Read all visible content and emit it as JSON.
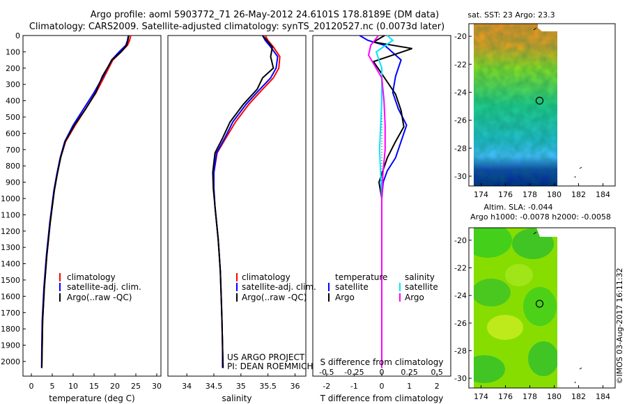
{
  "header": {
    "line1": "Argo profile: aoml 5903772_71 26-May-2012 24.6101S 178.8189E (DM data)",
    "line2": "Climatology: CARS2009. Satellite-adjusted climatology: synTS_20120527.nc (0.0073d later)"
  },
  "credit": {
    "project": "US ARGO PROJECT",
    "pi": "PI: DEAN ROEMMICH",
    "imos": "©IMOS 03-Aug-2017 16:11:32"
  },
  "colors": {
    "climatology": "#ff0000",
    "satellite": "#0000ff",
    "argo": "#000000",
    "salinity_satellite": "#00e5ff",
    "salinity_argo": "#ff00ff"
  },
  "chart_data": [
    {
      "type": "line",
      "id": "temperature",
      "xlabel": "temperature (deg C)",
      "ylabel": "depth",
      "xlim": [
        -2,
        31
      ],
      "ylim": [
        2090,
        0
      ],
      "xticks": [
        0,
        5,
        10,
        15,
        20,
        25,
        30
      ],
      "yticks": [
        0,
        100,
        200,
        300,
        400,
        500,
        600,
        700,
        800,
        900,
        1000,
        1100,
        1200,
        1300,
        1400,
        1500,
        1600,
        1700,
        1800,
        1900,
        2000
      ],
      "legend": [
        "climatology",
        "satellite-adj. clim.",
        "Argo(..raw -QC)"
      ],
      "series": [
        {
          "name": "climatology",
          "color": "#ff0000",
          "x": [
            23.8,
            23.5,
            23.0,
            21.5,
            19.5,
            17.5,
            15.5,
            13.0,
            10.5,
            8.2,
            7.0,
            6.2,
            5.5,
            5.0,
            4.5,
            4.1,
            3.7,
            3.4,
            3.1,
            2.9,
            2.7,
            2.6,
            2.5
          ],
          "y": [
            0,
            30,
            60,
            100,
            150,
            250,
            350,
            450,
            550,
            650,
            750,
            850,
            950,
            1050,
            1150,
            1250,
            1350,
            1450,
            1550,
            1650,
            1750,
            1900,
            2040
          ]
        },
        {
          "name": "satellite-adj. clim.",
          "color": "#0000ff",
          "x": [
            23.2,
            23.0,
            22.6,
            21.0,
            19.2,
            17.2,
            15.0,
            12.5,
            10.0,
            8.0,
            6.9,
            6.1,
            5.4,
            4.9,
            4.4,
            4.0,
            3.6,
            3.3,
            3.0,
            2.8,
            2.6,
            2.5,
            2.45
          ],
          "y": [
            0,
            30,
            60,
            100,
            150,
            250,
            350,
            450,
            550,
            650,
            750,
            850,
            950,
            1050,
            1150,
            1250,
            1350,
            1450,
            1550,
            1650,
            1750,
            1900,
            2040
          ]
        },
        {
          "name": "Argo(..raw -QC)",
          "color": "#000000",
          "x": [
            23.3,
            23.1,
            22.8,
            21.5,
            19.3,
            17.0,
            15.4,
            13.0,
            10.3,
            8.1,
            7.0,
            6.2,
            5.5,
            5.0,
            4.5,
            4.1,
            3.7,
            3.4,
            3.1,
            2.9,
            2.7,
            2.6,
            2.5
          ],
          "y": [
            0,
            30,
            60,
            100,
            150,
            250,
            350,
            450,
            550,
            650,
            750,
            850,
            950,
            1050,
            1150,
            1250,
            1350,
            1450,
            1550,
            1650,
            1750,
            1900,
            2040
          ]
        }
      ]
    },
    {
      "type": "line",
      "id": "salinity",
      "xlabel": "salinity",
      "xlim": [
        33.65,
        36.2
      ],
      "ylim": [
        2090,
        0
      ],
      "xticks": [
        34,
        34.5,
        35,
        35.5,
        36
      ],
      "legend": [
        "climatology",
        "satellite-adj. clim.",
        "Argo(..raw -QC)"
      ],
      "series": [
        {
          "name": "climatology",
          "color": "#ff0000",
          "x": [
            35.45,
            35.5,
            35.6,
            35.72,
            35.7,
            35.6,
            35.4,
            35.15,
            34.9,
            34.72,
            34.56,
            34.5,
            34.5,
            34.52,
            34.55,
            34.58,
            34.6,
            34.62,
            34.63,
            34.64,
            34.65,
            34.66,
            34.67
          ],
          "y": [
            0,
            30,
            70,
            130,
            200,
            260,
            330,
            420,
            530,
            630,
            720,
            840,
            940,
            1050,
            1150,
            1250,
            1350,
            1450,
            1550,
            1650,
            1750,
            1900,
            2040
          ]
        },
        {
          "name": "satellite-adj. clim.",
          "color": "#0000ff",
          "x": [
            35.4,
            35.45,
            35.55,
            35.68,
            35.65,
            35.55,
            35.35,
            35.1,
            34.85,
            34.7,
            34.55,
            34.5,
            34.5,
            34.52,
            34.55,
            34.58,
            34.6,
            34.62,
            34.63,
            34.64,
            34.65,
            34.66,
            34.66
          ],
          "y": [
            0,
            30,
            70,
            130,
            200,
            260,
            330,
            420,
            530,
            630,
            720,
            840,
            940,
            1050,
            1150,
            1250,
            1350,
            1450,
            1550,
            1650,
            1750,
            1900,
            2040
          ]
        },
        {
          "name": "Argo(..raw -QC)",
          "color": "#000000",
          "x": [
            35.4,
            35.48,
            35.58,
            35.55,
            35.6,
            35.4,
            35.3,
            35.05,
            34.8,
            34.66,
            34.52,
            34.48,
            34.49,
            34.52,
            34.55,
            34.58,
            34.6,
            34.62,
            34.63,
            34.64,
            34.65,
            34.66,
            34.67
          ],
          "y": [
            0,
            30,
            70,
            130,
            200,
            260,
            330,
            420,
            530,
            630,
            720,
            840,
            940,
            1050,
            1150,
            1250,
            1350,
            1450,
            1550,
            1650,
            1750,
            1900,
            2040
          ]
        }
      ]
    },
    {
      "type": "line",
      "id": "difference",
      "xlabel": "T difference from climatology",
      "x2label": "S difference from climatology",
      "xlim": [
        -2.5,
        2.5
      ],
      "x2lim": [
        -0.625,
        0.625
      ],
      "ylim": [
        2090,
        0
      ],
      "xticks": [
        -2,
        -1,
        0,
        1,
        2
      ],
      "x2ticks": [
        -0.5,
        -0.25,
        0,
        0.25,
        0.5
      ],
      "x2ticklabels": [
        "-0.5",
        "-0.25",
        "0",
        "0.25",
        "0.5"
      ],
      "legend_t_title": "temperature",
      "legend_s_title": "salinity",
      "legend_t": [
        "satellite",
        "Argo"
      ],
      "legend_s": [
        "satellite",
        "Argo"
      ],
      "series": [
        {
          "name": "T satellite",
          "color": "#0000ff",
          "axis": "T",
          "x": [
            -0.8,
            -0.5,
            0.1,
            0.7,
            0.5,
            0.4,
            0.6,
            0.9,
            0.7,
            0.5,
            0.2,
            0.05,
            0.0,
            0.0,
            0.0,
            0.0
          ],
          "y": [
            0,
            30,
            60,
            150,
            250,
            350,
            450,
            550,
            650,
            750,
            830,
            900,
            1000,
            1300,
            1700,
            2040
          ]
        },
        {
          "name": "T Argo",
          "color": "#000000",
          "axis": "T",
          "x": [
            0.1,
            -0.3,
            1.1,
            -0.3,
            0.1,
            0.5,
            0.7,
            0.8,
            0.5,
            0.2,
            0.0,
            -0.1,
            0.0,
            0.0,
            0.0
          ],
          "y": [
            0,
            40,
            80,
            160,
            260,
            360,
            460,
            560,
            650,
            750,
            850,
            900,
            1000,
            1500,
            2040
          ]
        },
        {
          "name": "S satellite",
          "color": "#00e5ff",
          "axis": "S",
          "x": [
            0.05,
            0.1,
            -0.05,
            0.0,
            0.0,
            -0.02,
            0.0,
            0.0,
            0.0
          ],
          "y": [
            0,
            30,
            100,
            200,
            400,
            700,
            1000,
            1500,
            2040
          ]
        },
        {
          "name": "S Argo",
          "color": "#ff00ff",
          "axis": "S",
          "x": [
            -0.03,
            -0.1,
            -0.12,
            0.0,
            0.02,
            0.03,
            0.03,
            0.01,
            0.0,
            0.0,
            0.0
          ],
          "y": [
            0,
            60,
            120,
            260,
            400,
            550,
            700,
            850,
            1000,
            1500,
            2040
          ]
        }
      ]
    },
    {
      "type": "heatmap",
      "id": "sst_map",
      "title": "sat. SST: 23 Argo: 23.3",
      "xlim": [
        173,
        185
      ],
      "ylim": [
        -30.7,
        -19.1
      ],
      "xticks": [
        174,
        176,
        178,
        180,
        182,
        184
      ],
      "yticks": [
        -20,
        -22,
        -24,
        -26,
        -28,
        -30
      ],
      "profile_lon": 178.8,
      "profile_lat": -24.6,
      "colors": [
        "#ffffff",
        "#f09020",
        "#88dd22",
        "#22cc88",
        "#44bbff",
        "#002288"
      ]
    },
    {
      "type": "heatmap",
      "id": "sla_map",
      "title_line1": "Altim. SLA: -0.044",
      "title_line2": "Argo h1000: -0.0078 h2000: -0.0058",
      "xlim": [
        173,
        185
      ],
      "ylim": [
        -30.7,
        -19.1
      ],
      "xticks": [
        174,
        176,
        178,
        180,
        182,
        184
      ],
      "yticks": [
        -20,
        -22,
        -24,
        -26,
        -28,
        -30
      ],
      "profile_lon": 178.8,
      "profile_lat": -24.6,
      "colors": [
        "#ffffff",
        "#00cc33",
        "#88dd00",
        "#ccee22"
      ]
    }
  ]
}
